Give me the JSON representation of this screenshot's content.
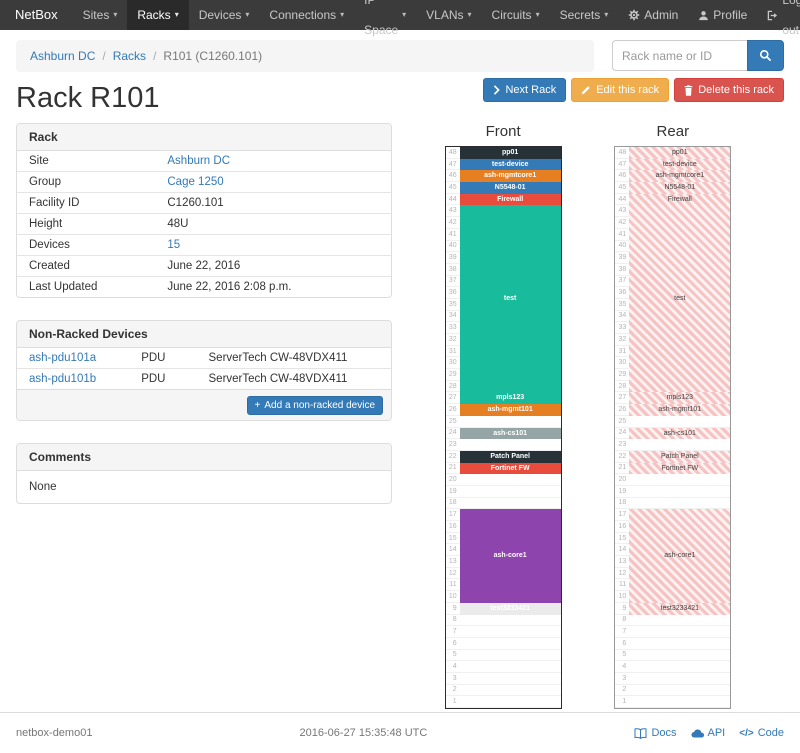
{
  "colors": {
    "navbar_bg": "#3b3b3b",
    "primary": "#337ab7",
    "warning": "#f0ad4e",
    "danger": "#d9534f",
    "link": "#337ab7",
    "rear_stripe": "#f6c3c3"
  },
  "navbar": {
    "brand": "NetBox",
    "items": [
      {
        "label": "Sites",
        "active": false
      },
      {
        "label": "Racks",
        "active": true
      },
      {
        "label": "Devices",
        "active": false
      },
      {
        "label": "Connections",
        "active": false
      },
      {
        "label": "IP Space",
        "active": false
      },
      {
        "label": "VLANs",
        "active": false
      },
      {
        "label": "Circuits",
        "active": false
      },
      {
        "label": "Secrets",
        "active": false
      }
    ],
    "right_items": [
      {
        "label": "Admin",
        "icon": "gear-icon"
      },
      {
        "label": "Profile",
        "icon": "user-icon"
      },
      {
        "label": "Log out",
        "icon": "logout-icon"
      }
    ]
  },
  "breadcrumb": [
    "Ashburn DC",
    "Racks",
    "R101 (C1260.101)"
  ],
  "search": {
    "placeholder": "Rack name or ID"
  },
  "actions": {
    "next": "Next Rack",
    "edit": "Edit this rack",
    "delete": "Delete this rack"
  },
  "page_title": "Rack R101",
  "rack_panel": {
    "title": "Rack",
    "rows": [
      {
        "label": "Site",
        "value": "Ashburn DC",
        "link": true
      },
      {
        "label": "Group",
        "value": "Cage 1250",
        "link": true
      },
      {
        "label": "Facility ID",
        "value": "C1260.101",
        "link": false
      },
      {
        "label": "Height",
        "value": "48U",
        "link": false
      },
      {
        "label": "Devices",
        "value": "15",
        "link": true
      },
      {
        "label": "Created",
        "value": "June 22, 2016",
        "link": false
      },
      {
        "label": "Last Updated",
        "value": "June 22, 2016 2:08 p.m.",
        "link": false
      }
    ]
  },
  "nonracked_panel": {
    "title": "Non-Racked Devices",
    "devices": [
      {
        "name": "ash-pdu101a",
        "role": "PDU",
        "type": "ServerTech CW-48VDX411"
      },
      {
        "name": "ash-pdu101b",
        "role": "PDU",
        "type": "ServerTech CW-48VDX411"
      }
    ],
    "add_button": "Add a non-racked device"
  },
  "comments_panel": {
    "title": "Comments",
    "body": "None"
  },
  "elevations": {
    "front_title": "Front",
    "rear_title": "Rear",
    "units_total": 48,
    "devices": [
      {
        "name": "pp01",
        "top_u": 48,
        "height_u": 1,
        "color": "#263238"
      },
      {
        "name": "test-device",
        "top_u": 47,
        "height_u": 1,
        "color": "#337ab7"
      },
      {
        "name": "ash-mgmtcore1",
        "top_u": 46,
        "height_u": 1,
        "color": "#e67e22"
      },
      {
        "name": "N5548-01",
        "top_u": 45,
        "height_u": 1,
        "color": "#337ab7"
      },
      {
        "name": "Firewall",
        "top_u": 44,
        "height_u": 1,
        "color": "#e74c3c"
      },
      {
        "name": "test",
        "top_u": 43,
        "height_u": 16,
        "color": "#18bc9c"
      },
      {
        "name": "mpls123",
        "top_u": 27,
        "height_u": 1,
        "color": "#18bc9c"
      },
      {
        "name": "ash-mgmt101",
        "top_u": 26,
        "height_u": 1,
        "color": "#e67e22"
      },
      {
        "name": "ash-cs101",
        "top_u": 24,
        "height_u": 1,
        "color": "#95a5a6"
      },
      {
        "name": "Patch Panel",
        "top_u": 22,
        "height_u": 1,
        "color": "#263238"
      },
      {
        "name": "Fortinet FW",
        "top_u": 21,
        "height_u": 1,
        "color": "#e74c3c"
      },
      {
        "name": "ash-core1",
        "top_u": 17,
        "height_u": 8,
        "color": "#8e44ad"
      },
      {
        "name": "test3233421",
        "top_u": 9,
        "height_u": 1,
        "color": "#ebebeb",
        "fg": "#ffffff"
      }
    ]
  },
  "footer": {
    "hostname": "netbox-demo01",
    "timestamp": "2016-06-27 15:35:48 UTC",
    "links": [
      {
        "label": "Docs",
        "icon": "book-icon"
      },
      {
        "label": "API",
        "icon": "cloud-icon"
      },
      {
        "label": "Code",
        "icon": "code-icon"
      }
    ]
  }
}
